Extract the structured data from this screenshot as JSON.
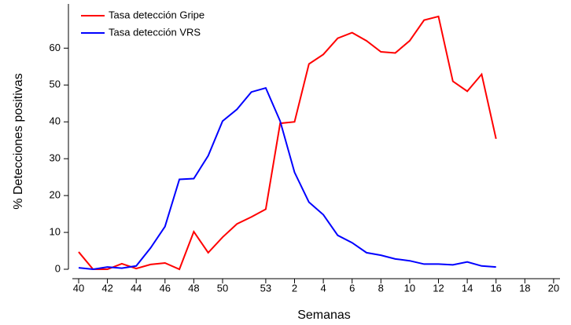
{
  "chart_data": {
    "type": "line",
    "x_label": "Semanas",
    "y_label": "% Detecciones positivas",
    "categories": [
      "40",
      null,
      "42",
      null,
      "44",
      null,
      "46",
      null,
      "48",
      null,
      "50",
      null,
      null,
      "53",
      null,
      "2",
      null,
      "4",
      null,
      "6",
      null,
      "8",
      null,
      "10",
      null,
      "12",
      null,
      "14",
      null,
      "16",
      null,
      "18",
      null,
      "20"
    ],
    "series": [
      {
        "name": "Tasa detección Gripe",
        "color": "#ff0000",
        "values": [
          4.7,
          0,
          0,
          1.5,
          0.2,
          1.3,
          1.7,
          0,
          10.2,
          4.5,
          8.7,
          12.3,
          14.2,
          16.3,
          39.6,
          40,
          55.7,
          58.3,
          62.7,
          64.2,
          62,
          59,
          58.7,
          62,
          67.6,
          68.6,
          51,
          48.3,
          52.9,
          35.4,
          null,
          null,
          null,
          null
        ]
      },
      {
        "name": "Tasa detección VRS",
        "color": "#0000ff",
        "values": [
          0.4,
          0,
          0.6,
          0.3,
          0.9,
          5.8,
          11.6,
          24.4,
          24.6,
          30.8,
          40.2,
          43.4,
          48.1,
          49.2,
          40.2,
          26.3,
          18.2,
          14.8,
          9.2,
          7.2,
          4.5,
          3.8,
          2.8,
          2.3,
          1.4,
          1.4,
          1.2,
          2,
          0.9,
          0.6,
          null,
          null,
          null,
          null
        ]
      }
    ],
    "ylim": [
      0,
      72
    ],
    "yticks": [
      0,
      10,
      20,
      30,
      40,
      50,
      60
    ],
    "legend": "upper-left"
  }
}
